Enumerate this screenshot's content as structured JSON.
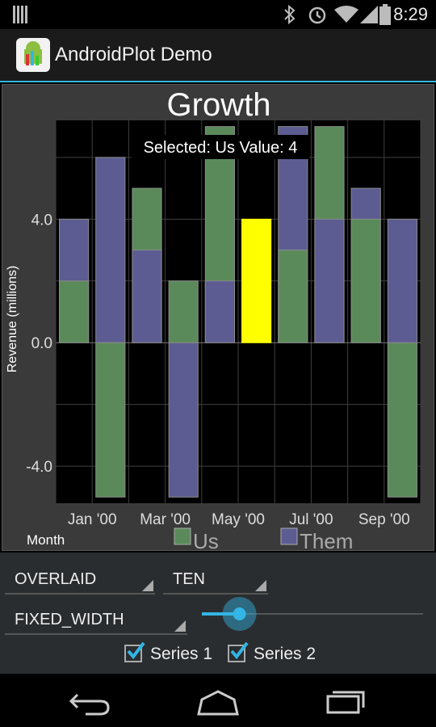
{
  "status_bar": {
    "time": "8:29",
    "icons": [
      "notification-icon",
      "bluetooth-icon",
      "alarm-icon",
      "wifi-icon",
      "signal-icon",
      "battery-icon"
    ]
  },
  "action_bar": {
    "title": "AndroidPlot Demo",
    "icon": "androidplot-app-icon"
  },
  "chart_data": {
    "type": "bar",
    "title": "Growth",
    "ylabel": "Revenue (millions)",
    "xlabel": "Month",
    "selection_label": "Selected: Us Value: 4",
    "y_tick_labels": [
      "4.0",
      "0.0",
      "-4.0"
    ],
    "y_ticks": [
      4,
      0,
      -4
    ],
    "ylim": [
      -5.2,
      7.2
    ],
    "x_tick_labels": [
      "Jan '00",
      "Mar '00",
      "May '00",
      "Jul '00",
      "Sep '00"
    ],
    "x_tick_indexes": [
      0,
      2,
      4,
      6,
      8
    ],
    "mode": "overlaid",
    "grid": true,
    "legend_placement": "bottom",
    "selected": {
      "series": 0,
      "index": 5
    },
    "series": [
      {
        "name": "Us",
        "color": "#5a8a5a",
        "values": [
          2,
          -5,
          5,
          2,
          7,
          4,
          3,
          7,
          4,
          -5
        ]
      },
      {
        "name": "Them",
        "color": "#5c5c92",
        "values": [
          4,
          6,
          3,
          -5,
          2,
          0,
          7,
          4,
          5,
          4
        ]
      }
    ],
    "selected_color": "#ffff00"
  },
  "controls": {
    "render_mode": "OVERLAID",
    "bar_count": "TEN",
    "width_mode": "FIXED_WIDTH",
    "slider_value": 0.17,
    "series1_label": "Series 1",
    "series1_checked": true,
    "series2_label": "Series 2",
    "series2_checked": true
  },
  "nav_bar": {
    "back": "back-icon",
    "home": "home-icon",
    "recents": "recents-icon"
  }
}
